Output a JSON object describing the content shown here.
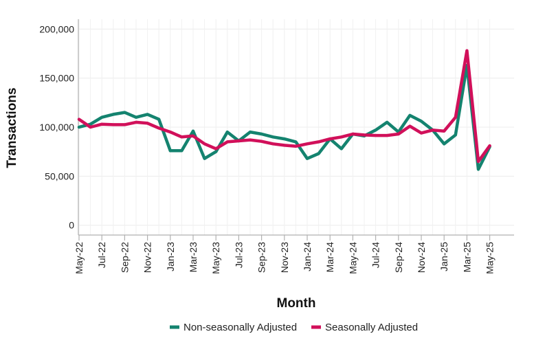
{
  "chart_data": {
    "type": "line",
    "xlabel": "Month",
    "ylabel": "Transactions",
    "ylim": [
      -10000,
      210000
    ],
    "yticks": [
      0,
      50000,
      100000,
      150000,
      200000
    ],
    "ytick_labels": [
      "0",
      "50,000",
      "100,000",
      "150,000",
      "200,000"
    ],
    "x": [
      "May-22",
      "Jun-22",
      "Jul-22",
      "Aug-22",
      "Sep-22",
      "Oct-22",
      "Nov-22",
      "Dec-22",
      "Jan-23",
      "Feb-23",
      "Mar-23",
      "Apr-23",
      "May-23",
      "Jun-23",
      "Jul-23",
      "Aug-23",
      "Sep-23",
      "Oct-23",
      "Nov-23",
      "Dec-23",
      "Jan-24",
      "Feb-24",
      "Mar-24",
      "Apr-24",
      "May-24",
      "Jun-24",
      "Jul-24",
      "Aug-24",
      "Sep-24",
      "Oct-24",
      "Nov-24",
      "Dec-24",
      "Jan-25",
      "Feb-25",
      "Mar-25",
      "Apr-25",
      "May-25"
    ],
    "xtick_labels": [
      "May-22",
      "Jul-22",
      "Sep-22",
      "Nov-22",
      "Jan-23",
      "Mar-23",
      "May-23",
      "Jul-23",
      "Sep-23",
      "Nov-23",
      "Jan-24",
      "Mar-24",
      "May-24",
      "Jul-24",
      "Sep-24",
      "Nov-24",
      "Jan-25",
      "Mar-25",
      "May-25"
    ],
    "grid": true,
    "legend_position": "bottom",
    "series": [
      {
        "name": "Non-seasonally Adjusted",
        "color": "#14836f",
        "values": [
          100000,
          103000,
          110000,
          113000,
          115000,
          110000,
          113000,
          108000,
          76000,
          76000,
          96000,
          68000,
          75000,
          95000,
          86000,
          95000,
          93000,
          90000,
          88000,
          85000,
          68000,
          73000,
          88000,
          78000,
          93000,
          91000,
          97000,
          105000,
          95000,
          112000,
          106000,
          97000,
          83000,
          92000,
          163000,
          57000,
          80000
        ]
      },
      {
        "name": "Seasonally Adjusted",
        "color": "#d1105a",
        "values": [
          108000,
          100000,
          103000,
          102500,
          102500,
          105000,
          104000,
          99000,
          95000,
          90000,
          91000,
          83000,
          78000,
          85000,
          86000,
          87000,
          85500,
          83000,
          81500,
          80500,
          83000,
          85000,
          88000,
          90000,
          93000,
          92000,
          91500,
          91500,
          93000,
          101000,
          94000,
          97000,
          96000,
          110000,
          178000,
          65000,
          81000
        ]
      }
    ]
  }
}
